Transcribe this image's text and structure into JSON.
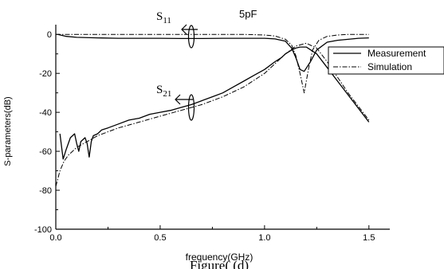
{
  "chart_data": {
    "type": "line",
    "title": "5pF",
    "xlabel": "frequency(GHz)",
    "ylabel": "S-parameters(dB)",
    "xlim": [
      0.0,
      1.6
    ],
    "ylim": [
      -100,
      5
    ],
    "x_ticks": [
      "0.0",
      "0.5",
      "1.0",
      "1.5"
    ],
    "y_ticks": [
      "0",
      "-20",
      "-40",
      "-60",
      "-80",
      "-100"
    ],
    "legend": {
      "position": "top-right",
      "entries": [
        "Measurement",
        "Simulation"
      ]
    },
    "annotations": [
      {
        "text": "S11",
        "base": "S",
        "sub": "11"
      },
      {
        "text": "S21",
        "base": "S",
        "sub": "21"
      }
    ],
    "series": [
      {
        "name": "Measurement",
        "curve": "S11",
        "style": "solid",
        "x": [
          0.01,
          0.05,
          0.1,
          0.2,
          0.3,
          0.4,
          0.5,
          0.6,
          0.7,
          0.8,
          0.9,
          1.0,
          1.05,
          1.1,
          1.13,
          1.15,
          1.17,
          1.19,
          1.22,
          1.25,
          1.3,
          1.35,
          1.4,
          1.45,
          1.5
        ],
        "y": [
          0,
          -1,
          -1.5,
          -1.8,
          -2,
          -2,
          -2,
          -2.1,
          -2.1,
          -2,
          -2,
          -2,
          -2.3,
          -3.5,
          -7,
          -12,
          -18,
          -19,
          -14,
          -8,
          -4,
          -3,
          -2.5,
          -2,
          -1.8
        ]
      },
      {
        "name": "Simulation",
        "curve": "S11",
        "style": "dash-dot",
        "x": [
          0.0,
          0.1,
          0.3,
          0.5,
          0.7,
          0.9,
          1.0,
          1.05,
          1.1,
          1.13,
          1.15,
          1.17,
          1.19,
          1.21,
          1.23,
          1.26,
          1.3,
          1.35,
          1.4,
          1.5
        ],
        "y": [
          0,
          0,
          0,
          0,
          0,
          0,
          -0.3,
          -0.8,
          -2.5,
          -5.5,
          -11,
          -20,
          -30,
          -18,
          -8,
          -3,
          -1,
          -0.3,
          0,
          0
        ]
      },
      {
        "name": "Measurement",
        "curve": "S21",
        "style": "solid",
        "x": [
          0.02,
          0.035,
          0.05,
          0.07,
          0.09,
          0.1,
          0.11,
          0.12,
          0.14,
          0.15,
          0.16,
          0.17,
          0.18,
          0.2,
          0.22,
          0.25,
          0.3,
          0.35,
          0.4,
          0.45,
          0.5,
          0.55,
          0.6,
          0.65,
          0.7,
          0.75,
          0.8,
          0.85,
          0.9,
          0.95,
          1.0,
          1.05,
          1.08,
          1.1,
          1.13,
          1.15,
          1.17,
          1.2,
          1.25,
          1.3,
          1.35,
          1.4,
          1.45,
          1.5
        ],
        "y": [
          -51,
          -64,
          -59,
          -53,
          -51,
          -56,
          -60,
          -55,
          -53,
          -56,
          -63,
          -55,
          -52,
          -51,
          -49,
          -48,
          -46,
          -44,
          -43,
          -41,
          -40,
          -39,
          -37.5,
          -36,
          -34,
          -32,
          -30,
          -27,
          -24,
          -21,
          -18,
          -14,
          -12,
          -10,
          -8,
          -7,
          -6.5,
          -6.5,
          -10,
          -17,
          -24,
          -31,
          -38,
          -45
        ]
      },
      {
        "name": "Simulation",
        "curve": "S21",
        "style": "dash-dot",
        "x": [
          0.0,
          0.02,
          0.04,
          0.06,
          0.08,
          0.1,
          0.15,
          0.2,
          0.3,
          0.4,
          0.5,
          0.6,
          0.7,
          0.8,
          0.9,
          1.0,
          1.05,
          1.1,
          1.15,
          1.2,
          1.25,
          1.3,
          1.35,
          1.4,
          1.45,
          1.5
        ],
        "y": [
          -78,
          -70,
          -65,
          -62,
          -60,
          -58,
          -55,
          -52,
          -48,
          -45,
          -42,
          -39,
          -36,
          -32,
          -27,
          -20,
          -15,
          -10,
          -6,
          -4.5,
          -7,
          -14,
          -22,
          -30,
          -37,
          -44
        ]
      }
    ]
  },
  "figure_caption": "Figure( (d)"
}
